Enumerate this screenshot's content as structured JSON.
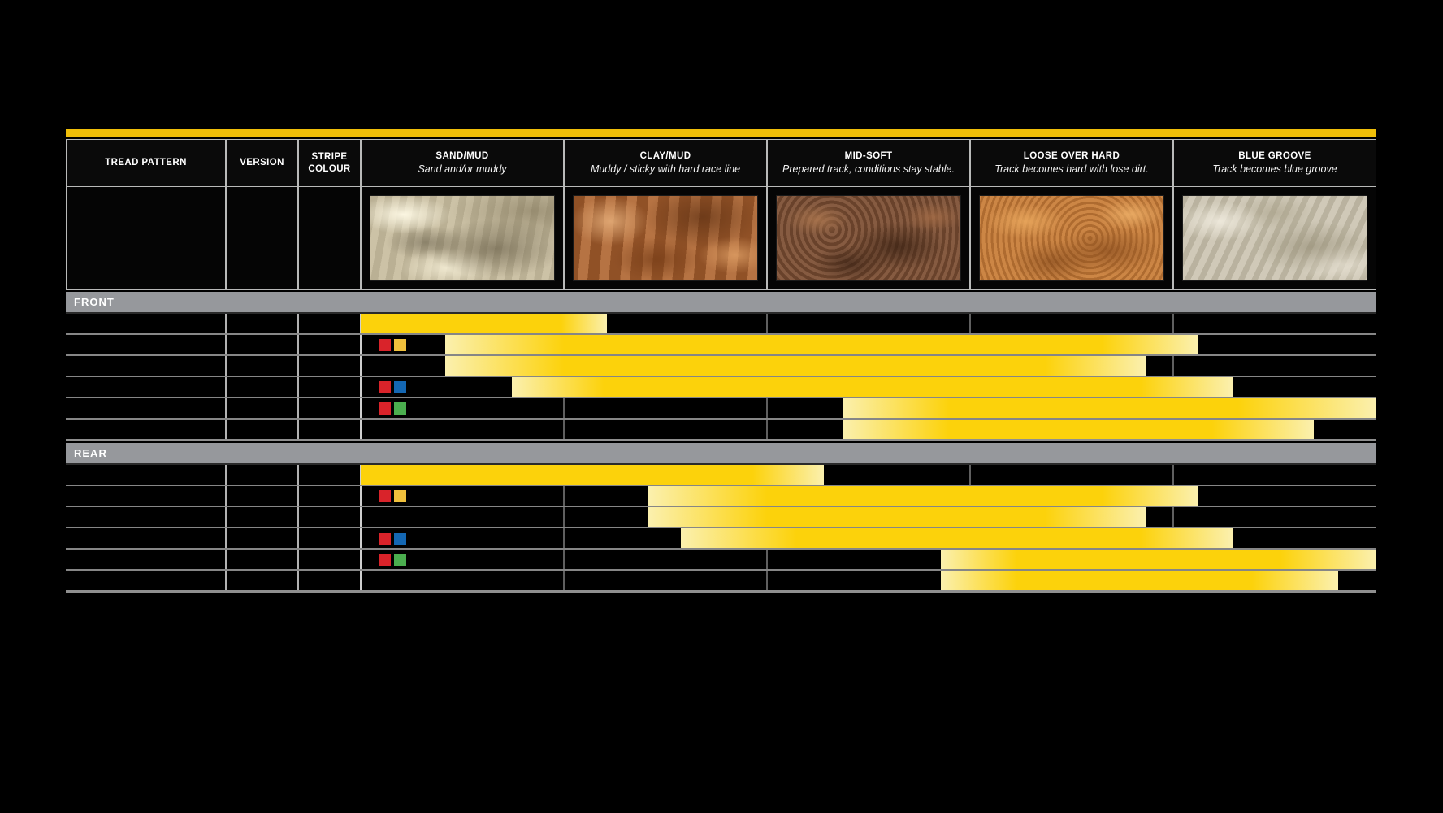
{
  "page": {
    "background": "#000000"
  },
  "header": {
    "col_tread": "TREAD PATTERN",
    "col_version": "VERSION",
    "col_stripe": "STRIPE COLOUR"
  },
  "colors": {
    "accent_yellow": "#EFBE09",
    "bar_yellow": "#FCD20B",
    "bar_pale": "#FBF0AE",
    "band_gray": "#96989C",
    "stripe_red": "#D9232A",
    "stripe_yellow": "#F0C03C",
    "stripe_blue": "#1467B3",
    "stripe_green": "#4BAE4F"
  },
  "chart_data": {
    "type": "bar",
    "orientation": "horizontal-range",
    "note": "Each row is a suitability range across the track-condition axis, 0-100% spanning the five condition columns; fades rendered pale yellow at range ends.",
    "x_axis": {
      "categories": [
        "SAND/MUD",
        "CLAY/MUD",
        "MID-SOFT",
        "LOOSE OVER HARD",
        "BLUE GROOVE"
      ],
      "range_pct": [
        0,
        100
      ]
    },
    "conditions": [
      {
        "title": "SAND/MUD",
        "subtitle": "Sand and/or muddy",
        "texture": "sand"
      },
      {
        "title": "CLAY/MUD",
        "subtitle": "Muddy / sticky with hard race line",
        "texture": "clay"
      },
      {
        "title": "MID-SOFT",
        "subtitle": "Prepared track, conditions stay stable.",
        "texture": "midsoft"
      },
      {
        "title": "LOOSE OVER HARD",
        "subtitle": "Track becomes hard with lose dirt.",
        "texture": "loose"
      },
      {
        "title": "BLUE GROOVE",
        "subtitle": "Track becomes blue groove",
        "texture": "bluegroove"
      }
    ],
    "sections": [
      {
        "label": "FRONT",
        "rows": [
          {
            "stripes": [
              "red",
              "red"
            ],
            "bar": {
              "start": 0,
              "solid_start": 0,
              "solid_end": 19.7,
              "end": 24.2
            }
          },
          {
            "stripes": [
              "red",
              "yellow"
            ],
            "bar": {
              "start": 8.3,
              "solid_start": 20,
              "solid_end": 73,
              "end": 82.5
            }
          },
          {
            "stripes": [],
            "bar": {
              "start": 8.3,
              "solid_start": 20,
              "solid_end": 67.4,
              "end": 77.3
            }
          },
          {
            "stripes": [
              "red",
              "blue"
            ],
            "bar": {
              "start": 14.9,
              "solid_start": 24,
              "solid_end": 76.8,
              "end": 85.8
            }
          },
          {
            "stripes": [
              "red",
              "green"
            ],
            "bar": {
              "start": 47.4,
              "solid_start": 57.9,
              "solid_end": 86.3,
              "end": 100
            }
          },
          {
            "stripes": [],
            "bar": {
              "start": 47.4,
              "solid_start": 57.9,
              "solid_end": 83.8,
              "end": 93.8
            }
          }
        ]
      },
      {
        "label": "REAR",
        "rows": [
          {
            "stripes": [
              "red",
              "red"
            ],
            "bar": {
              "start": 0,
              "solid_start": 0,
              "solid_end": 38.6,
              "end": 45.6
            }
          },
          {
            "stripes": [
              "red",
              "yellow"
            ],
            "bar": {
              "start": 28.3,
              "solid_start": 40,
              "solid_end": 73,
              "end": 82.5
            }
          },
          {
            "stripes": [],
            "bar": {
              "start": 28.3,
              "solid_start": 40,
              "solid_end": 67.4,
              "end": 77.3
            }
          },
          {
            "stripes": [
              "red",
              "blue"
            ],
            "bar": {
              "start": 31.5,
              "solid_start": 42.9,
              "solid_end": 76.8,
              "end": 85.8
            }
          },
          {
            "stripes": [
              "red",
              "green"
            ],
            "bar": {
              "start": 57.1,
              "solid_start": 64.6,
              "solid_end": 90.5,
              "end": 100
            }
          },
          {
            "stripes": [],
            "bar": {
              "start": 57.1,
              "solid_start": 64.6,
              "solid_end": 87.7,
              "end": 96.2
            }
          }
        ]
      }
    ]
  }
}
